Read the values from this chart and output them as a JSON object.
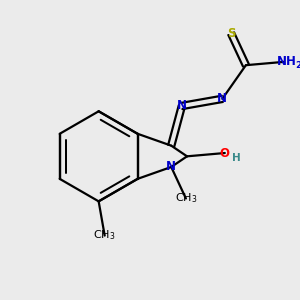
{
  "background_color": "#ebebeb",
  "atom_colors": {
    "C": "#000000",
    "N": "#0000cc",
    "O": "#ff0000",
    "S": "#aaaa00",
    "H": "#3a8a8a"
  },
  "bond_color": "#000000",
  "bond_width": 1.6,
  "figsize": [
    3.0,
    3.0
  ],
  "dpi": 100
}
